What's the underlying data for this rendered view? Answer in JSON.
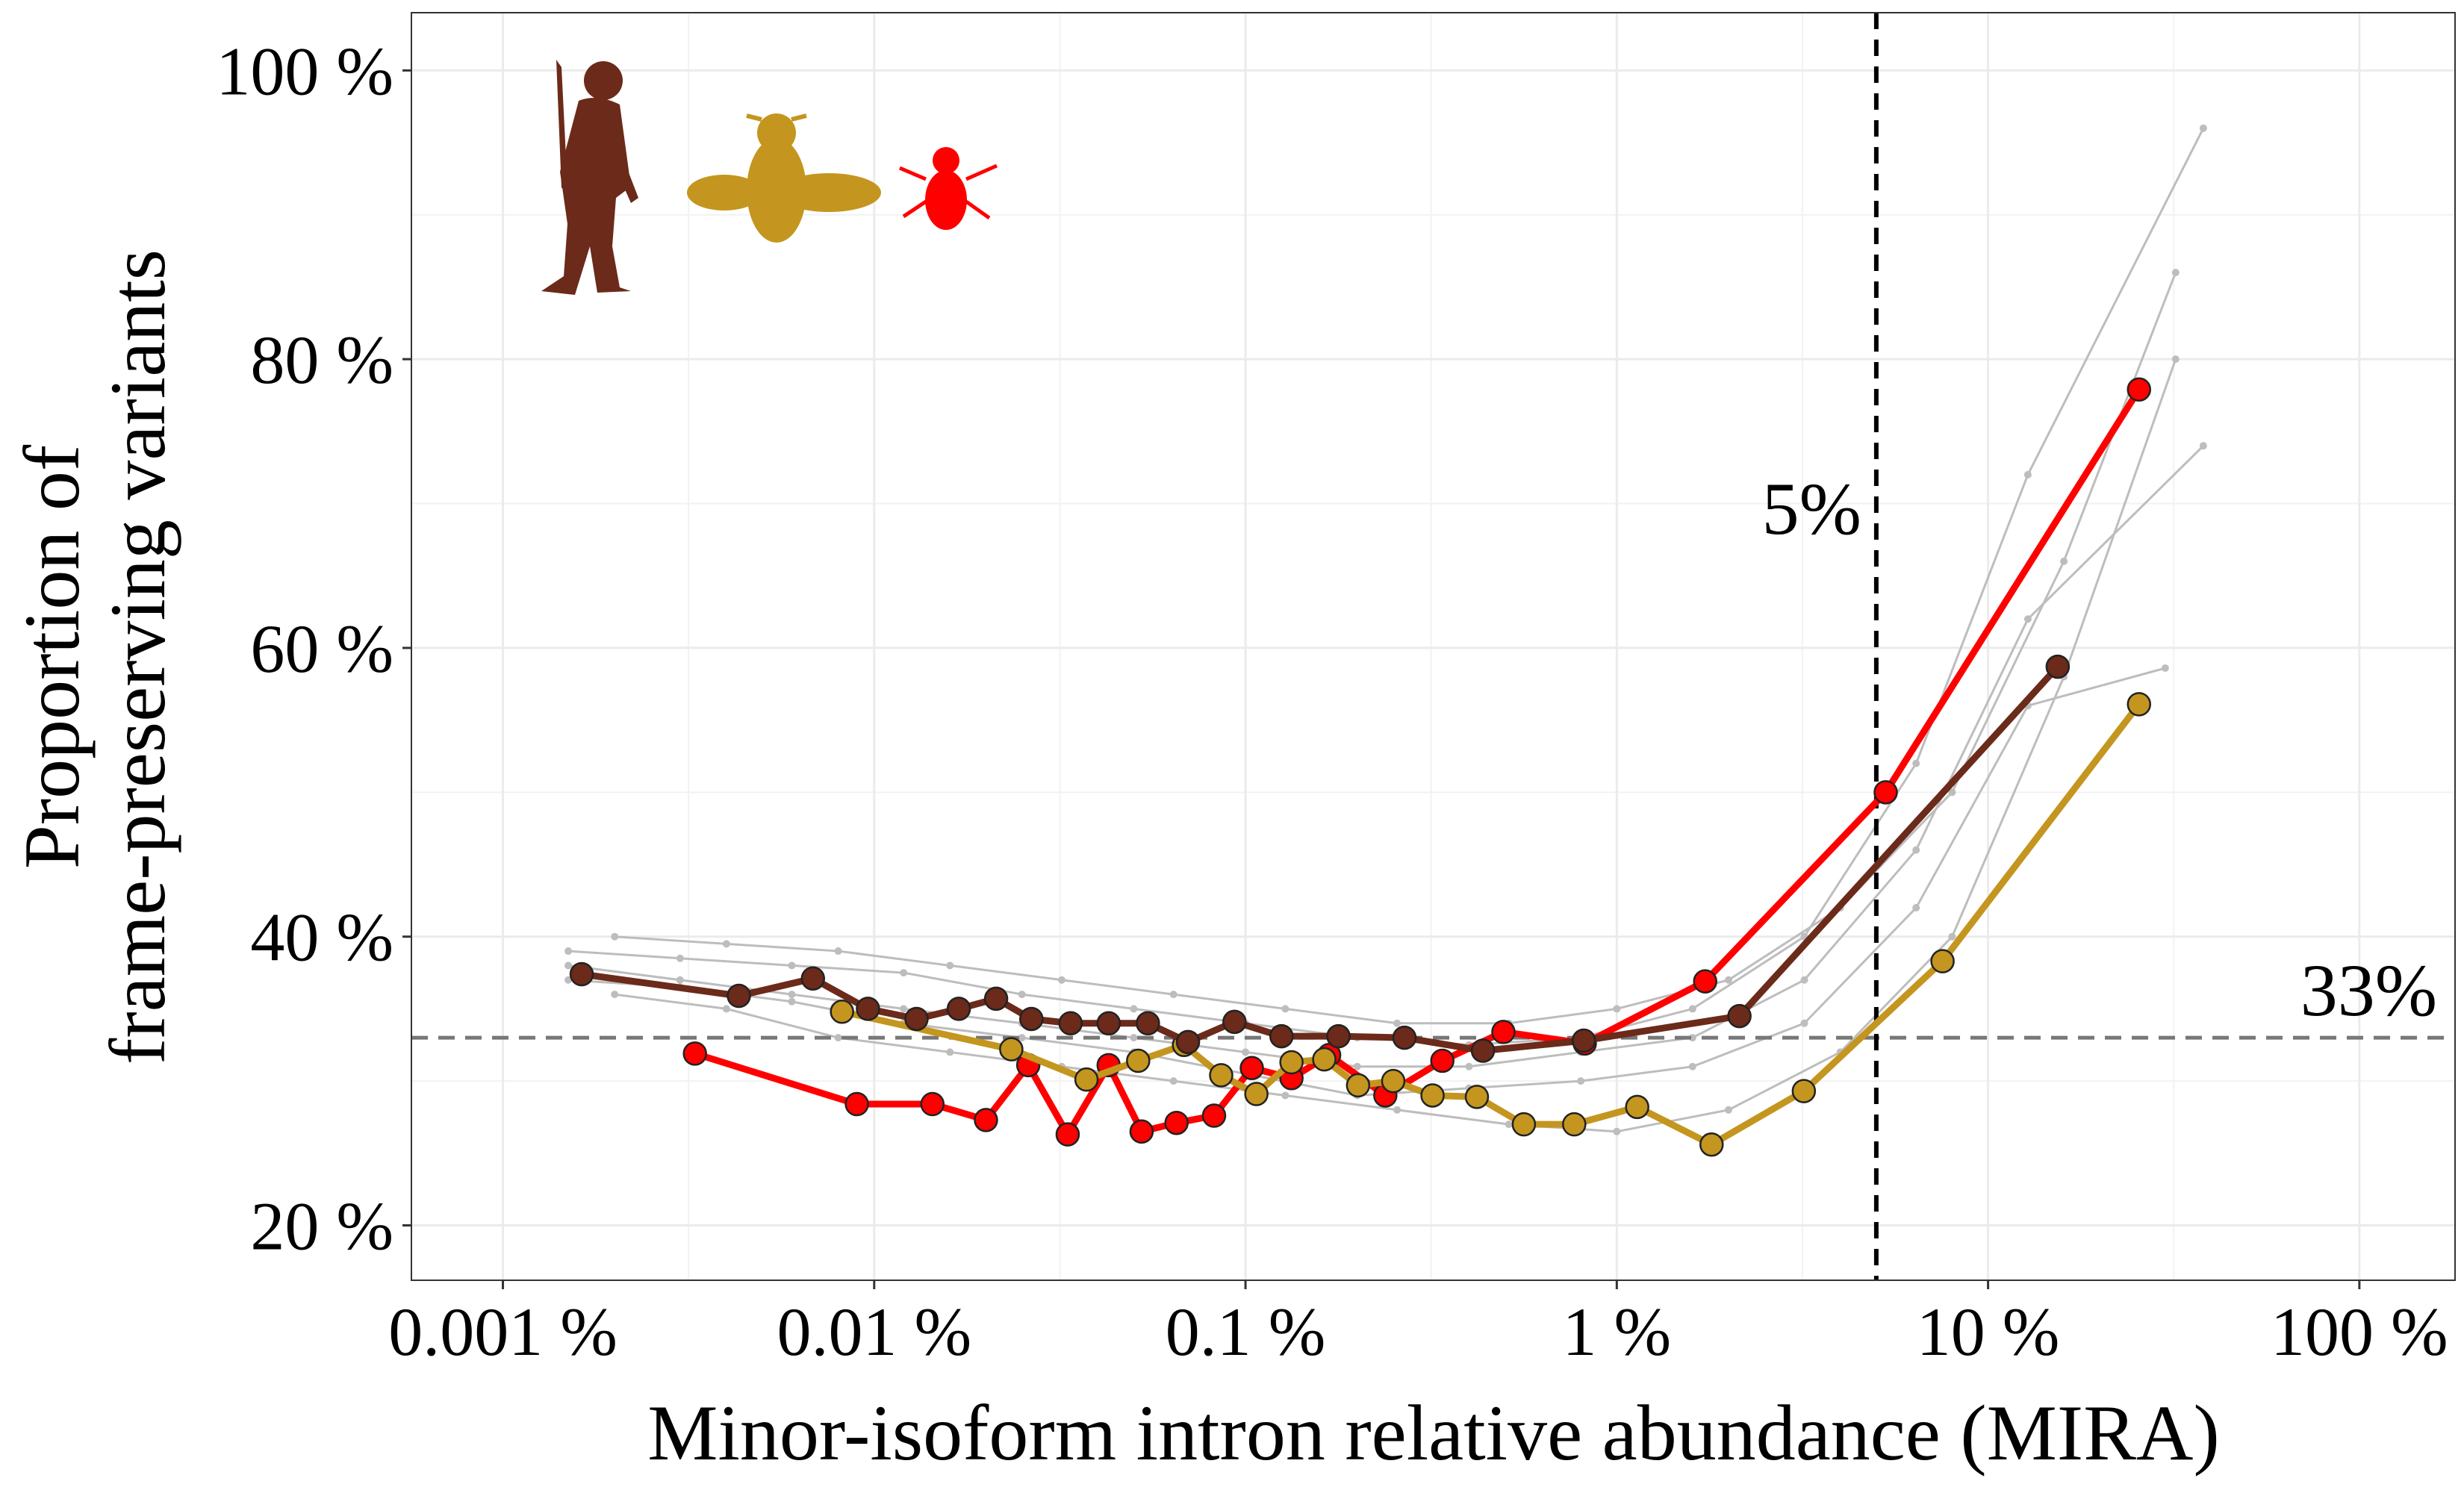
{
  "chart_data": {
    "type": "line",
    "xlabel": "Minor-isoform intron relative abundance (MIRA)",
    "ylabel": [
      "Proportion of",
      "frame-preserving variants"
    ],
    "xscale": "log",
    "xlim": [
      0.000567,
      181
    ],
    "ylim": [
      16.2,
      104.0
    ],
    "xticks": [
      {
        "value": 0.001,
        "label": "0.001 %"
      },
      {
        "value": 0.01,
        "label": "0.01 %"
      },
      {
        "value": 0.1,
        "label": "0.1 %"
      },
      {
        "value": 1,
        "label": "1 %"
      },
      {
        "value": 10,
        "label": "10 %"
      },
      {
        "value": 100,
        "label": "100 %"
      }
    ],
    "yticks": [
      {
        "value": 20,
        "label": "20 %"
      },
      {
        "value": 40,
        "label": "40 %"
      },
      {
        "value": 60,
        "label": "60 %"
      },
      {
        "value": 80,
        "label": "80 %"
      },
      {
        "value": 100,
        "label": "100 %"
      }
    ],
    "grid": true,
    "vlines": [
      {
        "value": 5,
        "label": "5%"
      }
    ],
    "hlines": [
      {
        "value": 33,
        "label": "33%"
      }
    ],
    "series": [
      {
        "color": "#bdbdbd",
        "style": "thin",
        "x": [
          0.0015,
          0.003,
          0.006,
          0.012,
          0.025,
          0.05,
          0.1,
          0.2,
          0.4,
          0.8,
          1.6,
          3.2,
          6.4,
          12.8,
          38
        ],
        "values": [
          39,
          38.5,
          38,
          37.5,
          36,
          35,
          34,
          33,
          32.5,
          33,
          35,
          40,
          52,
          72,
          96
        ]
      },
      {
        "color": "#bdbdbd",
        "style": "thin",
        "x": [
          0.0015,
          0.003,
          0.006,
          0.012,
          0.025,
          0.05,
          0.1,
          0.2,
          0.4,
          0.8,
          1.6,
          3.2,
          6.4,
          12.8,
          38
        ],
        "values": [
          38,
          37,
          36,
          35,
          34,
          33,
          32,
          31,
          31,
          32,
          33,
          37,
          46,
          62,
          74
        ]
      },
      {
        "color": "#bdbdbd",
        "style": "thin",
        "x": [
          0.0015,
          0.003,
          0.006,
          0.012,
          0.025,
          0.05,
          0.1,
          0.2,
          0.4,
          0.8,
          1.6,
          3.2,
          6.4,
          12.8,
          30
        ],
        "values": [
          37,
          36.5,
          35.5,
          34,
          33,
          32,
          30.5,
          29,
          29.5,
          30,
          31,
          34,
          42,
          56,
          58.6
        ]
      },
      {
        "color": "#bdbdbd",
        "style": "thin",
        "x": [
          0.002,
          0.004,
          0.008,
          0.016,
          0.032,
          0.064,
          0.128,
          0.256,
          0.512,
          1.0,
          2.0,
          4.0,
          8.0,
          16,
          32
        ],
        "values": [
          36,
          35,
          33,
          32,
          31,
          30,
          29,
          28,
          27,
          26.5,
          28,
          32,
          40,
          58,
          80
        ]
      },
      {
        "color": "#bdbdbd",
        "style": "thin",
        "x": [
          0.002,
          0.004,
          0.008,
          0.016,
          0.032,
          0.064,
          0.128,
          0.256,
          0.512,
          1.0,
          2.0,
          4.0,
          8.0,
          16,
          32
        ],
        "values": [
          40,
          39.5,
          39,
          38,
          37,
          36,
          35,
          34,
          34,
          35,
          37,
          42,
          50,
          66,
          86
        ]
      },
      {
        "color": "#ff0000",
        "style": "bold",
        "x": [
          0.00329,
          0.00898,
          0.01435,
          0.02,
          0.026,
          0.0332,
          0.0428,
          0.0525,
          0.0652,
          0.0823,
          0.104,
          0.133,
          0.168,
          0.238,
          0.339,
          0.495,
          0.82,
          1.73,
          5.3,
          25.5
        ],
        "values": [
          31.9,
          28.4,
          28.4,
          27.3,
          31.1,
          26.3,
          31.1,
          26.5,
          27.1,
          27.6,
          30.9,
          30.2,
          31.8,
          29.0,
          31.4,
          33.4,
          32.6,
          36.9,
          50.0,
          77.9
        ]
      },
      {
        "color": "#c4961f",
        "style": "bold",
        "x": [
          0.00819,
          0.0234,
          0.0373,
          0.0514,
          0.0683,
          0.086,
          0.107,
          0.133,
          0.163,
          0.201,
          0.25,
          0.319,
          0.42,
          0.562,
          0.768,
          1.135,
          1.8,
          3.19,
          7.54,
          25.5
        ],
        "values": [
          34.8,
          32.2,
          30.1,
          31.4,
          32.5,
          30.4,
          29.1,
          31.3,
          31.5,
          29.7,
          30.0,
          29.0,
          28.9,
          27.0,
          27.0,
          28.2,
          25.6,
          29.3,
          38.3,
          56.1
        ]
      },
      {
        "color": "#6b2a1a",
        "style": "bold",
        "x": [
          0.00163,
          0.00432,
          0.00684,
          0.00962,
          0.013,
          0.0169,
          0.0213,
          0.0265,
          0.0338,
          0.0428,
          0.0546,
          0.07,
          0.0934,
          0.125,
          0.178,
          0.268,
          0.436,
          0.815,
          2.14,
          15.4
        ],
        "values": [
          37.4,
          35.9,
          37.1,
          35.0,
          34.3,
          35.0,
          35.7,
          34.3,
          34.0,
          34.0,
          34.0,
          32.7,
          34.1,
          33.1,
          33.1,
          33.0,
          32.1,
          32.8,
          34.5,
          58.7
        ]
      }
    ]
  }
}
